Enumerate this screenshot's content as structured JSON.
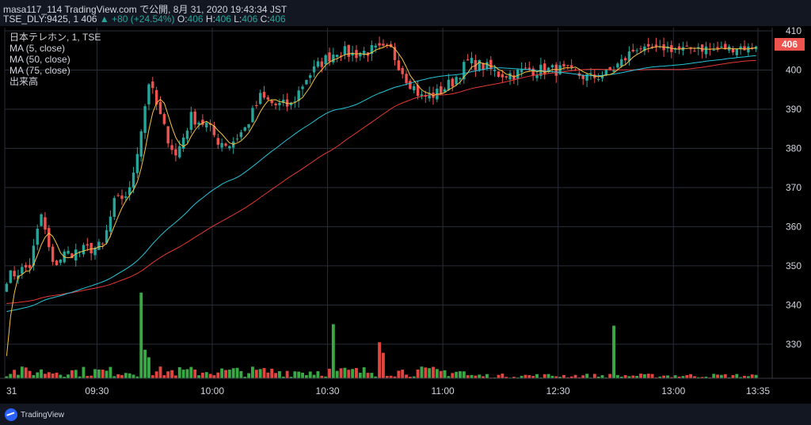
{
  "header": {
    "publisher_line": "masa117_114 TradingView.com で公開, 8月 31, 2020 19:43:34 JST",
    "symbol": "TSE_DLY:9425, 1",
    "last": "406",
    "change": "▲ +80 (+24.54%)",
    "o_label": "O:",
    "o_value": "406",
    "h_label": "H:",
    "h_value": "406",
    "l_label": "L:",
    "l_value": "406",
    "c_label": "C:",
    "c_value": "406"
  },
  "legend": {
    "line1": "日本テレホン, 1, TSE",
    "line2": "MA (5, close)",
    "line3": "MA (50, close)",
    "line4": "MA (75, close)",
    "line5": "出来高"
  },
  "last_price_label": "406",
  "branding": "TradingView",
  "colors": {
    "background": "#131722",
    "up": "#26a69a",
    "down": "#ef5350",
    "vol_up": "#3aa845",
    "vol_down": "#e0453f",
    "ma5": "#f5c242",
    "ma50": "#26c6da",
    "ma75": "#e53935",
    "grid": "#2a2e39",
    "text": "#d1d4dc",
    "price_label_bg": "#ef5350"
  },
  "chart_data": {
    "type": "candlestick",
    "y_ticks": [
      330,
      340,
      350,
      360,
      370,
      380,
      390,
      400,
      410
    ],
    "ylim": [
      321.5,
      411
    ],
    "x_tick_labels": [
      "31",
      "09:30",
      "10:00",
      "10:30",
      "11:00",
      "12:30",
      "13:00",
      "13:35"
    ],
    "anchors": [
      [
        0,
        347
      ],
      [
        6,
        350
      ],
      [
        9,
        363
      ],
      [
        12,
        350
      ],
      [
        15,
        353
      ],
      [
        20,
        354
      ],
      [
        25,
        355
      ],
      [
        28,
        366
      ],
      [
        32,
        369
      ],
      [
        35,
        385
      ],
      [
        37,
        397
      ],
      [
        41,
        385
      ],
      [
        44,
        378
      ],
      [
        48,
        388
      ],
      [
        52,
        386
      ],
      [
        55,
        382
      ],
      [
        58,
        381
      ],
      [
        62,
        385
      ],
      [
        66,
        393
      ],
      [
        70,
        391
      ],
      [
        74,
        391
      ],
      [
        78,
        398
      ],
      [
        82,
        402
      ],
      [
        86,
        405
      ],
      [
        90,
        404
      ],
      [
        95,
        405
      ],
      [
        100,
        405
      ],
      [
        104,
        398
      ],
      [
        108,
        393
      ],
      [
        112,
        394
      ],
      [
        116,
        397
      ],
      [
        120,
        402
      ],
      [
        124,
        401
      ],
      [
        128,
        399
      ],
      [
        132,
        399
      ],
      [
        136,
        400
      ],
      [
        140,
        400
      ],
      [
        144,
        400
      ],
      [
        148,
        399
      ],
      [
        152,
        398
      ],
      [
        156,
        399
      ],
      [
        160,
        402
      ],
      [
        164,
        406
      ],
      [
        168,
        406
      ],
      [
        172,
        406
      ],
      [
        176,
        405
      ],
      [
        180,
        406
      ],
      [
        184,
        405
      ],
      [
        188,
        406
      ],
      [
        192,
        406
      ]
    ],
    "ma50_start": 338.2,
    "ma75_start": 340.3,
    "volume_spikes": [
      [
        35,
        2.85
      ],
      [
        85,
        1.8
      ],
      [
        97,
        1.2
      ],
      [
        98,
        0.85
      ],
      [
        158,
        1.75
      ],
      [
        36,
        0.95
      ],
      [
        37,
        0.7
      ]
    ]
  }
}
